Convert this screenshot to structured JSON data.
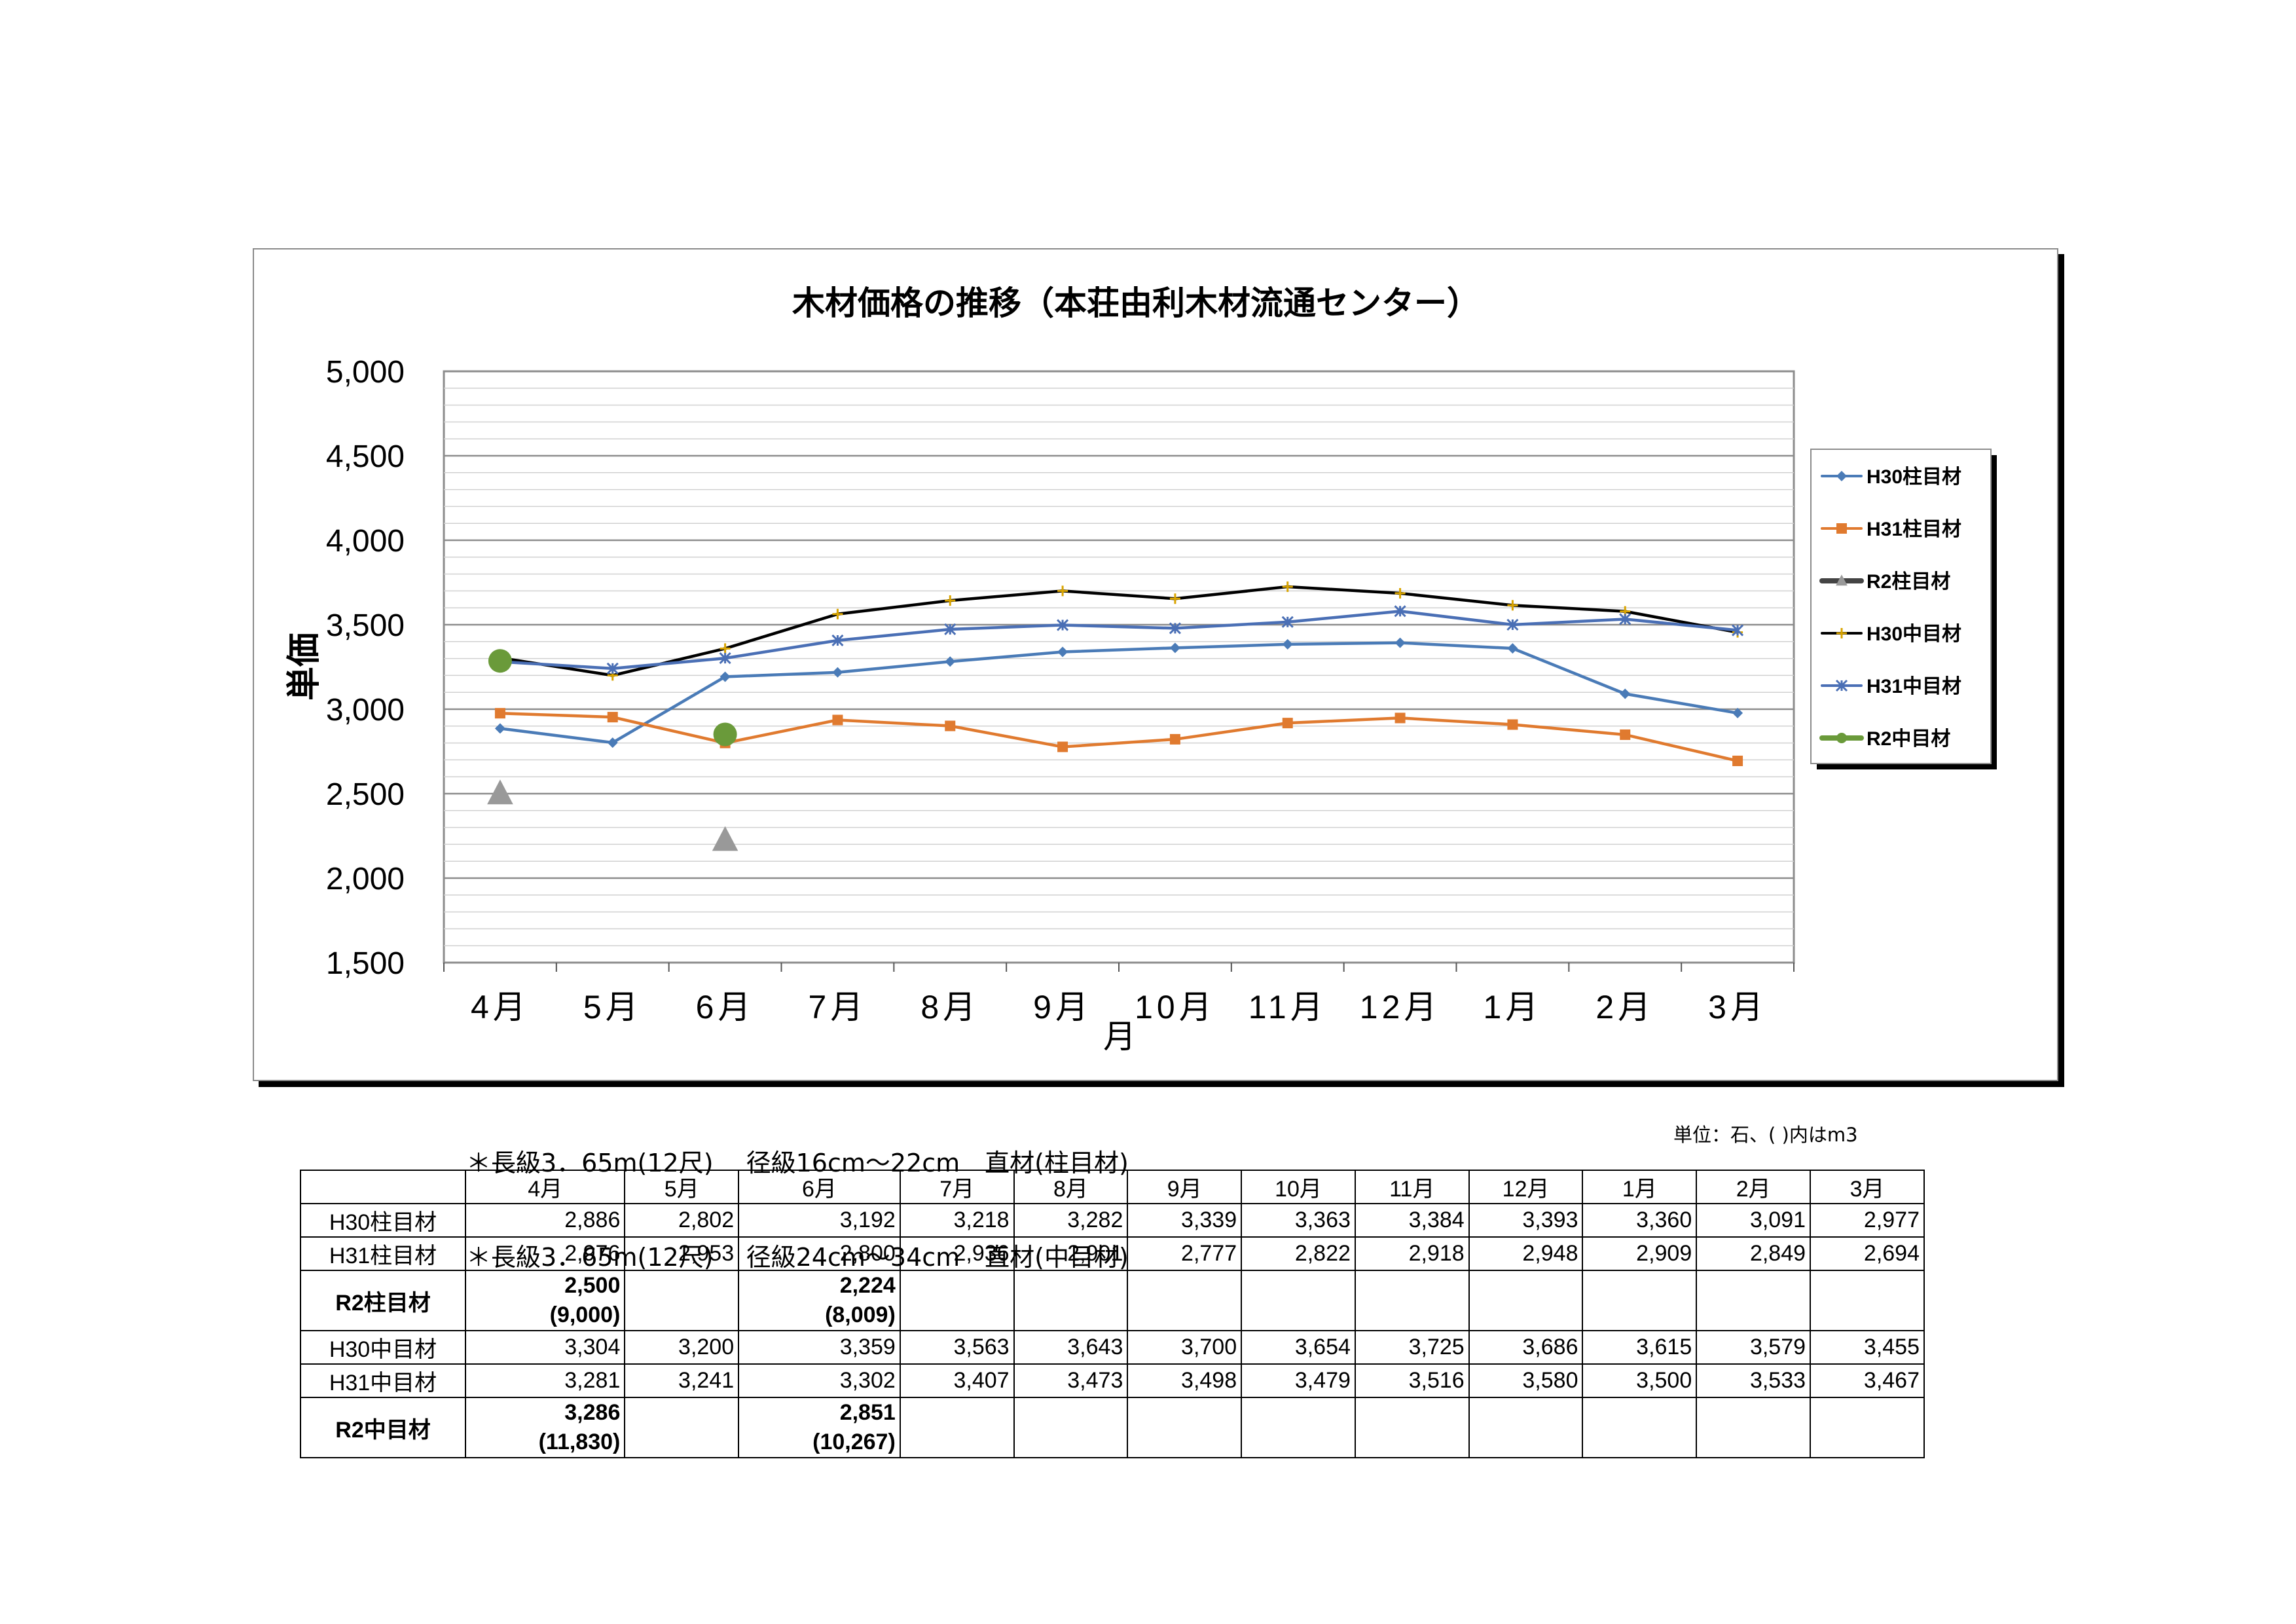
{
  "chart_data": {
    "type": "line",
    "title": "木材価格の推移（本荘由利木材流通センター）",
    "xlabel": "月",
    "ylabel": "単価",
    "categories": [
      "4月",
      "5月",
      "6月",
      "7月",
      "8月",
      "9月",
      "10月",
      "11月",
      "12月",
      "1月",
      "2月",
      "3月"
    ],
    "ylim": [
      1500,
      5000
    ],
    "y_ticks": [
      "1,500",
      "2,000",
      "2,500",
      "3,000",
      "3,500",
      "4,000",
      "4,500",
      "5,000"
    ],
    "grid": true,
    "legend_position": "right",
    "series": [
      {
        "name": "H30柱目材",
        "color": "#4a7bb7",
        "marker": "diamond",
        "values": [
          2886,
          2802,
          3192,
          3218,
          3282,
          3339,
          3363,
          3384,
          3393,
          3360,
          3091,
          2977
        ]
      },
      {
        "name": "H31柱目材",
        "color": "#e07a2f",
        "marker": "square",
        "values": [
          2976,
          2953,
          2800,
          2936,
          2901,
          2777,
          2822,
          2918,
          2948,
          2909,
          2849,
          2694
        ]
      },
      {
        "name": "R2柱目材",
        "color": "#999999",
        "marker": "triangle",
        "line": false,
        "values": [
          2500,
          null,
          2224,
          null,
          null,
          null,
          null,
          null,
          null,
          null,
          null,
          null
        ]
      },
      {
        "name": "H30中目材",
        "color": "#000000",
        "marker": "plus",
        "values": [
          3304,
          3200,
          3359,
          3563,
          3643,
          3700,
          3654,
          3725,
          3686,
          3615,
          3579,
          3455
        ]
      },
      {
        "name": "H31中目材",
        "color": "#4a6fb5",
        "marker": "star",
        "values": [
          3281,
          3241,
          3302,
          3407,
          3473,
          3498,
          3479,
          3516,
          3580,
          3500,
          3533,
          3467
        ]
      },
      {
        "name": "R2中目材",
        "color": "#6a9a3a",
        "marker": "circle",
        "line": false,
        "values": [
          3286,
          null,
          2851,
          null,
          null,
          null,
          null,
          null,
          null,
          null,
          null,
          null
        ]
      }
    ]
  },
  "notes": [
    "＊長級3．65m(12尺)　 径級16cm～22cm　直材(柱目材)",
    "＊長級3．65m(12尺)　 径級24cm～34cm　直材(中目材)"
  ],
  "unit_label": "単位：石、( )内はm3",
  "table": {
    "header": [
      "",
      "4月",
      "5月",
      "6月",
      "7月",
      "8月",
      "9月",
      "10月",
      "11月",
      "12月",
      "1月",
      "2月",
      "3月"
    ],
    "rows": [
      {
        "label": "H30柱目材",
        "cells": [
          "2,886",
          "2,802",
          "3,192",
          "3,218",
          "3,282",
          "3,339",
          "3,363",
          "3,384",
          "3,393",
          "3,360",
          "3,091",
          "2,977"
        ]
      },
      {
        "label": "H31柱目材",
        "cells": [
          "2,976",
          "2,953",
          "2,800",
          "2,936",
          "2,901",
          "2,777",
          "2,822",
          "2,918",
          "2,948",
          "2,909",
          "2,849",
          "2,694"
        ]
      },
      {
        "label": "R2柱目材",
        "bold": true,
        "cells": [
          "2,500",
          "",
          "2,224",
          "",
          "",
          "",
          "",
          "",
          "",
          "",
          "",
          ""
        ],
        "sub": [
          "(9,000)",
          "",
          "(8,009)",
          "",
          "",
          "",
          "",
          "",
          "",
          "",
          "",
          ""
        ]
      },
      {
        "label": "H30中目材",
        "cells": [
          "3,304",
          "3,200",
          "3,359",
          "3,563",
          "3,643",
          "3,700",
          "3,654",
          "3,725",
          "3,686",
          "3,615",
          "3,579",
          "3,455"
        ]
      },
      {
        "label": "H31中目材",
        "cells": [
          "3,281",
          "3,241",
          "3,302",
          "3,407",
          "3,473",
          "3,498",
          "3,479",
          "3,516",
          "3,580",
          "3,500",
          "3,533",
          "3,467"
        ]
      },
      {
        "label": "R2中目材",
        "bold": true,
        "cells": [
          "3,286",
          "",
          "2,851",
          "",
          "",
          "",
          "",
          "",
          "",
          "",
          "",
          ""
        ],
        "sub": [
          "(11,830)",
          "",
          "(10,267)",
          "",
          "",
          "",
          "",
          "",
          "",
          "",
          "",
          ""
        ]
      }
    ]
  }
}
